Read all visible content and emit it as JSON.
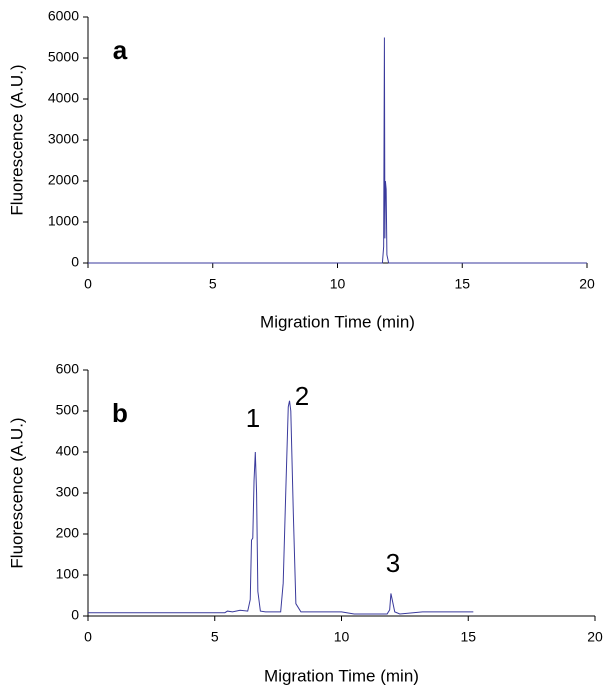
{
  "chart_data": [
    {
      "type": "line",
      "label": "a",
      "x_label": "Migration Time (min)",
      "y_label": "Fluorescence (A.U.)",
      "xlim": [
        0,
        20
      ],
      "xticks": [
        0,
        5,
        10,
        15,
        20
      ],
      "ylim": [
        0,
        6000
      ],
      "yticks": [
        0,
        1000,
        2000,
        3000,
        4000,
        5000,
        6000
      ],
      "series": [
        {
          "color": "#3a3a9c",
          "x": [
            0,
            11.8,
            11.85,
            11.88,
            11.9,
            11.92,
            11.95,
            11.98,
            12.05,
            20
          ],
          "values": [
            0,
            0,
            400,
            5500,
            600,
            2000,
            1800,
            200,
            0,
            0
          ]
        }
      ]
    },
    {
      "type": "line",
      "label": "b",
      "x_label": "Migration Time (min)",
      "y_label": "Fluorescence (A.U.)",
      "xlim": [
        0,
        20
      ],
      "xticks": [
        0,
        5,
        10,
        15,
        20
      ],
      "ylim": [
        0,
        600
      ],
      "yticks": [
        0,
        100,
        200,
        300,
        400,
        500,
        600
      ],
      "annotations": [
        "1",
        "2",
        "3"
      ],
      "series": [
        {
          "color": "#3a3a9c",
          "x": [
            0,
            5.4,
            5.5,
            5.7,
            6.0,
            6.3,
            6.4,
            6.45,
            6.5,
            6.55,
            6.6,
            6.65,
            6.7,
            6.8,
            7.0,
            7.6,
            7.7,
            7.8,
            7.9,
            7.95,
            8.0,
            8.1,
            8.2,
            8.4,
            9.0,
            10.0,
            10.5,
            11.8,
            11.9,
            11.95,
            12.0,
            12.1,
            12.3,
            13.2,
            15.2
          ],
          "values": [
            8,
            8,
            12,
            10,
            14,
            12,
            40,
            185,
            190,
            330,
            400,
            300,
            60,
            12,
            10,
            10,
            80,
            300,
            510,
            525,
            500,
            250,
            30,
            10,
            10,
            10,
            5,
            5,
            15,
            55,
            40,
            10,
            5,
            10,
            10
          ]
        }
      ]
    }
  ]
}
